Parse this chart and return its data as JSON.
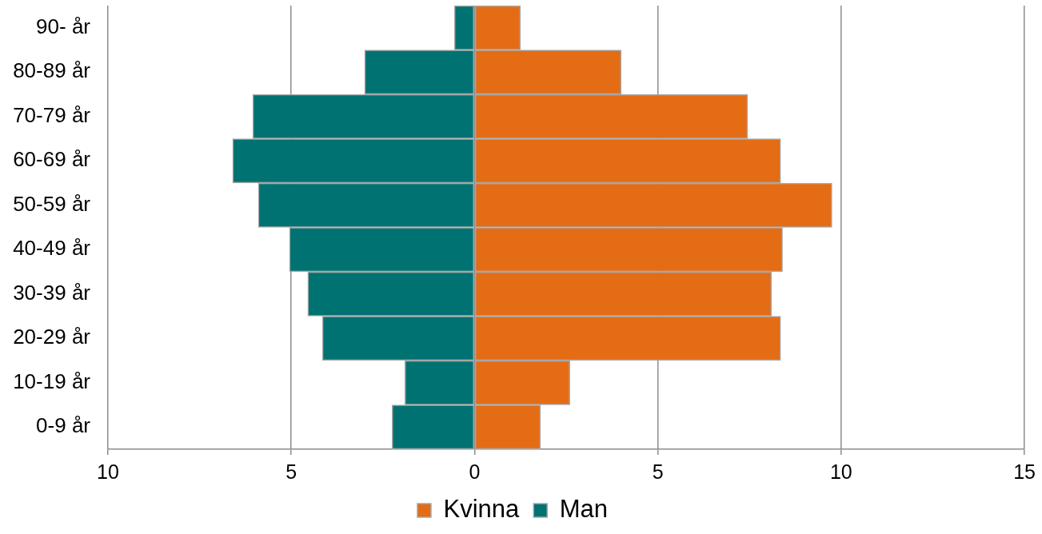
{
  "chart_data": {
    "type": "bar",
    "orientation": "horizontal",
    "stacked": true,
    "categories": [
      "90- år",
      "80-89 år",
      "70-79 år",
      "60-69 år",
      "50-59 år",
      "40-49 år",
      "30-39 år",
      "20-29 år",
      "10-19 år",
      "0-9 år"
    ],
    "series": [
      {
        "name": "Kvinna",
        "color": "#e46c15",
        "values": [
          1.25,
          4.0,
          7.45,
          8.35,
          9.75,
          8.4,
          8.1,
          8.35,
          2.6,
          1.8
        ]
      },
      {
        "name": "Man",
        "color": "#007272",
        "values": [
          -0.55,
          -3.0,
          -6.05,
          -6.6,
          -5.9,
          -5.05,
          -4.55,
          -4.15,
          -1.9,
          -2.25
        ]
      }
    ],
    "xlim": [
      -10,
      15
    ],
    "xticks": [
      {
        "value": -10,
        "label": "10"
      },
      {
        "value": -5,
        "label": "5"
      },
      0,
      5,
      10,
      15
    ],
    "grid": "x",
    "legend": "bottom"
  }
}
